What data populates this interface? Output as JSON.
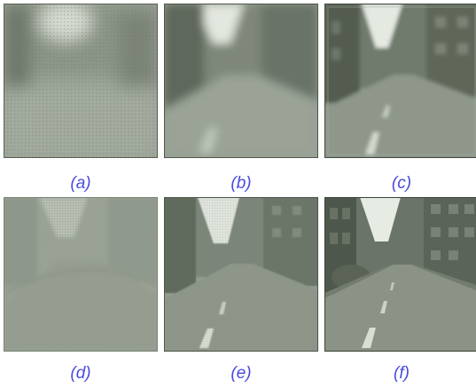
{
  "figure": {
    "panels": [
      {
        "id": "a",
        "caption": "(a)"
      },
      {
        "id": "b",
        "caption": "(b)"
      },
      {
        "id": "c",
        "caption": "(c)"
      },
      {
        "id": "d",
        "caption": "(d)"
      },
      {
        "id": "e",
        "caption": "(e)"
      },
      {
        "id": "f",
        "caption": "(f)"
      }
    ],
    "colors": {
      "caption": "#4a4ae0",
      "road": "#7f897c",
      "sky": "#dfe5dc",
      "buildings": "#5c6659",
      "lane_marking": "#cfd6cb"
    }
  }
}
